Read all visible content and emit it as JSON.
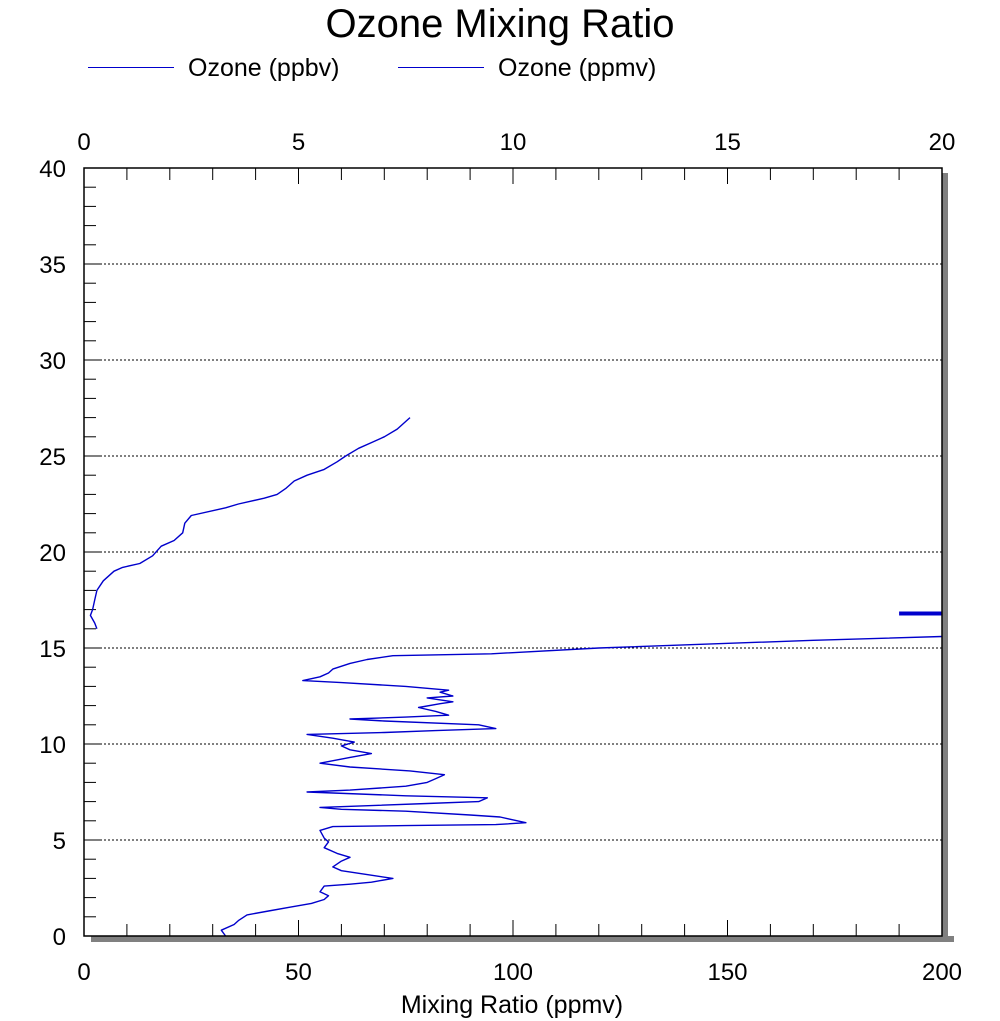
{
  "chart_data": {
    "type": "line",
    "title": "Ozone Mixing Ratio",
    "xlabel": "Mixing Ratio (ppmv)",
    "ylabel": "",
    "bottom_axis": {
      "range": [
        0,
        200
      ],
      "ticks": [
        "0",
        "50",
        "100",
        "150",
        "200"
      ]
    },
    "top_axis": {
      "range": [
        0,
        20
      ],
      "ticks": [
        "0",
        "5",
        "10",
        "15",
        "20"
      ]
    },
    "ylim": [
      0,
      40
    ],
    "y_ticks": [
      "0",
      "5",
      "10",
      "15",
      "20",
      "25",
      "30",
      "35",
      "40"
    ],
    "grid": "horizontal dotted at every 5 on the y axis",
    "legend": {
      "placement": "top-left"
    },
    "series": [
      {
        "name": "Ozone (ppbv)",
        "axis": "bottom",
        "color": "#0000cc",
        "points": [
          [
            33,
            0.0
          ],
          [
            32,
            0.3
          ],
          [
            35,
            0.6
          ],
          [
            36,
            0.8
          ],
          [
            38,
            1.1
          ],
          [
            43,
            1.3
          ],
          [
            48,
            1.5
          ],
          [
            53,
            1.7
          ],
          [
            56,
            1.9
          ],
          [
            57,
            2.1
          ],
          [
            55,
            2.3
          ],
          [
            56,
            2.6
          ],
          [
            62,
            2.7
          ],
          [
            67,
            2.8
          ],
          [
            72,
            3.0
          ],
          [
            66,
            3.2
          ],
          [
            60,
            3.4
          ],
          [
            58,
            3.6
          ],
          [
            60,
            3.9
          ],
          [
            62,
            4.1
          ],
          [
            59,
            4.3
          ],
          [
            56,
            4.6
          ],
          [
            57,
            4.9
          ],
          [
            56,
            5.1
          ],
          [
            55,
            5.5
          ],
          [
            58,
            5.7
          ],
          [
            75,
            5.75
          ],
          [
            96,
            5.8
          ],
          [
            103,
            5.9
          ],
          [
            99,
            6.1
          ],
          [
            97,
            6.2
          ],
          [
            90,
            6.3
          ],
          [
            75,
            6.5
          ],
          [
            60,
            6.6
          ],
          [
            55,
            6.7
          ],
          [
            80,
            6.9
          ],
          [
            92,
            7.0
          ],
          [
            94,
            7.2
          ],
          [
            75,
            7.3
          ],
          [
            52,
            7.5
          ],
          [
            62,
            7.6
          ],
          [
            75,
            7.8
          ],
          [
            80,
            8.0
          ],
          [
            82,
            8.2
          ],
          [
            84,
            8.4
          ],
          [
            76,
            8.6
          ],
          [
            62,
            8.8
          ],
          [
            55,
            9.0
          ],
          [
            62,
            9.3
          ],
          [
            67,
            9.5
          ],
          [
            62,
            9.7
          ],
          [
            60,
            9.9
          ],
          [
            63,
            10.1
          ],
          [
            58,
            10.3
          ],
          [
            52,
            10.5
          ],
          [
            70,
            10.6
          ],
          [
            82,
            10.7
          ],
          [
            96,
            10.8
          ],
          [
            92,
            11.0
          ],
          [
            70,
            11.2
          ],
          [
            62,
            11.3
          ],
          [
            75,
            11.4
          ],
          [
            85,
            11.5
          ],
          [
            82,
            11.7
          ],
          [
            78,
            11.9
          ],
          [
            83,
            12.1
          ],
          [
            86,
            12.2
          ],
          [
            80,
            12.4
          ],
          [
            86,
            12.5
          ],
          [
            83,
            12.7
          ],
          [
            85,
            12.8
          ],
          [
            75,
            13.0
          ],
          [
            60,
            13.2
          ],
          [
            51,
            13.3
          ],
          [
            55,
            13.5
          ],
          [
            57,
            13.7
          ],
          [
            58,
            13.9
          ],
          [
            62,
            14.2
          ],
          [
            66,
            14.4
          ],
          [
            72,
            14.6
          ],
          [
            95,
            14.7
          ],
          [
            120,
            15.0
          ],
          [
            170,
            15.4
          ],
          [
            200,
            15.6
          ]
        ]
      },
      {
        "name": "Ozone (ppmv)",
        "axis": "top",
        "color": "#0000cc",
        "points": [
          [
            0.3,
            16.0
          ],
          [
            0.25,
            16.3
          ],
          [
            0.15,
            16.7
          ],
          [
            0.2,
            17.0
          ],
          [
            0.25,
            17.5
          ],
          [
            0.3,
            18.0
          ],
          [
            0.45,
            18.5
          ],
          [
            0.7,
            19.0
          ],
          [
            0.9,
            19.2
          ],
          [
            1.3,
            19.4
          ],
          [
            1.6,
            19.8
          ],
          [
            1.8,
            20.3
          ],
          [
            2.1,
            20.6
          ],
          [
            2.3,
            21.0
          ],
          [
            2.35,
            21.5
          ],
          [
            2.5,
            21.9
          ],
          [
            3.3,
            22.3
          ],
          [
            3.6,
            22.5
          ],
          [
            4.2,
            22.8
          ],
          [
            4.5,
            23.0
          ],
          [
            4.7,
            23.3
          ],
          [
            4.9,
            23.7
          ],
          [
            5.2,
            24.0
          ],
          [
            5.6,
            24.3
          ],
          [
            5.9,
            24.7
          ],
          [
            6.1,
            25.0
          ],
          [
            6.4,
            25.4
          ],
          [
            6.7,
            25.7
          ],
          [
            7.0,
            26.0
          ],
          [
            7.3,
            26.4
          ],
          [
            7.6,
            27.0
          ]
        ]
      }
    ]
  },
  "legend_items": [
    {
      "label": "Ozone (ppbv)",
      "color": "#0000cc"
    },
    {
      "label": "Ozone (ppmv)",
      "color": "#0000cc"
    }
  ],
  "colors": {
    "line": "#0000cc",
    "shadow": "#808080",
    "grid": "#000000"
  }
}
